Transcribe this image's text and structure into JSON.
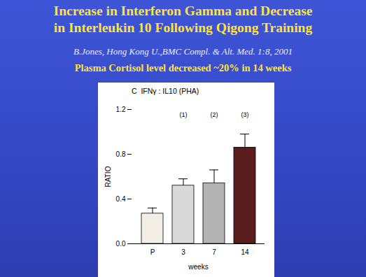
{
  "slide": {
    "title_lines": [
      "Increase in Interferon Gamma and Decrease",
      "in Interleukin 10 Following Qigong Training"
    ],
    "subtitle": "B.Jones, Hong Kong U.,BMC Compl. & Alt. Med. 1:8, 2001",
    "note": "Plasma Cortisol level decreased ~20% in 14 weeks"
  },
  "chart_data": {
    "type": "bar",
    "title": "C  IFNγ : IL10 (PHA)",
    "categories": [
      "P",
      "3",
      "7",
      "14"
    ],
    "values": [
      0.27,
      0.52,
      0.54,
      0.86
    ],
    "errors": [
      0.05,
      0.06,
      0.12,
      0.12
    ],
    "colors": [
      "#f2eee6",
      "#d9d9d9",
      "#b3b3b3",
      "#5a1c1c"
    ],
    "annotations": [
      null,
      "(1)",
      "(2)",
      "(3)"
    ],
    "x_label": "weeks",
    "y_label": "RATIO",
    "ylim": [
      0,
      1.2
    ],
    "yticks": [
      {
        "value": 0,
        "label": "0.0"
      },
      0.4,
      0.8,
      1.2
    ]
  }
}
